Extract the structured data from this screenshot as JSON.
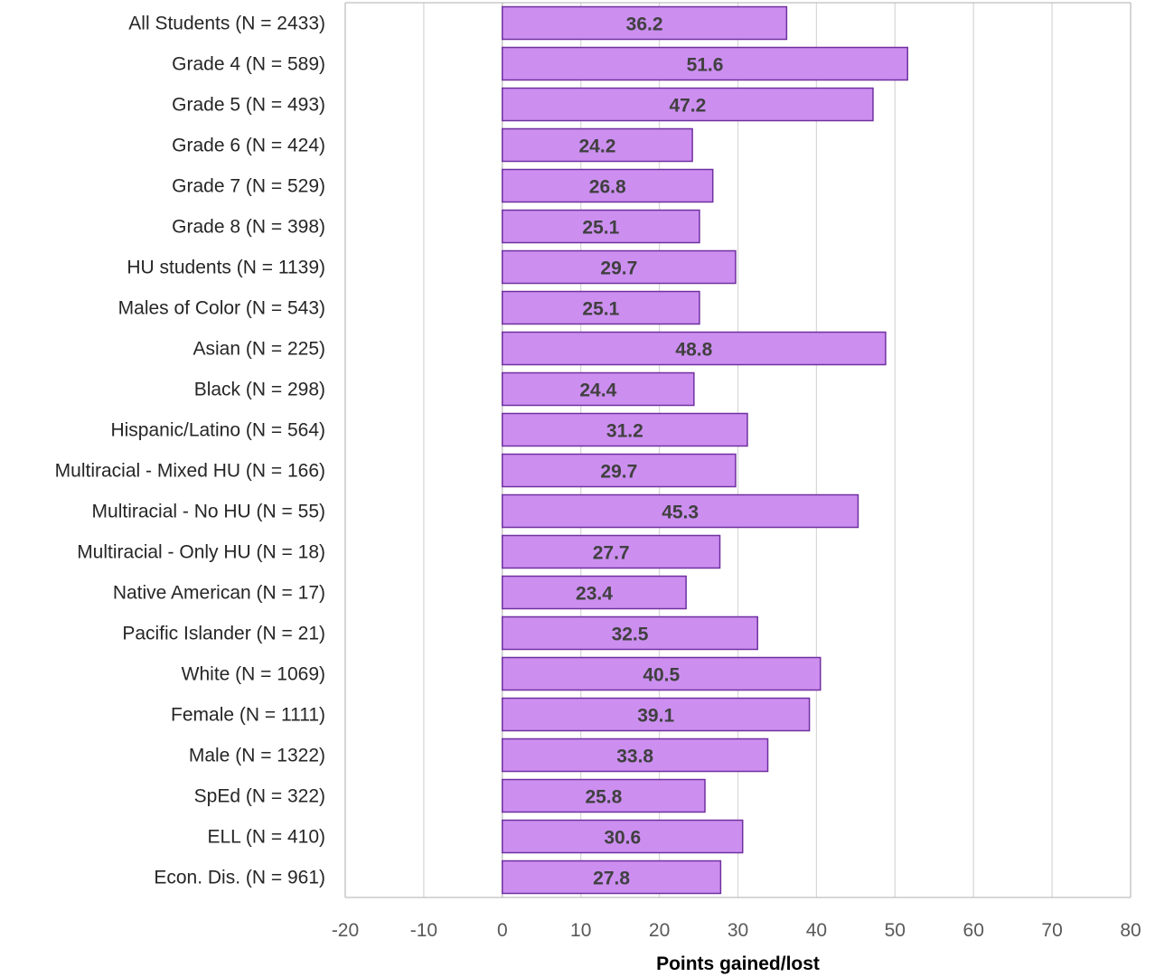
{
  "chart_data": {
    "type": "bar",
    "orientation": "horizontal",
    "categories": [
      "All Students (N = 2433)",
      "Grade 4 (N = 589)",
      "Grade 5 (N = 493)",
      "Grade 6 (N = 424)",
      "Grade 7 (N = 529)",
      "Grade 8 (N = 398)",
      "HU students (N = 1139)",
      "Males of Color (N = 543)",
      "Asian (N = 225)",
      "Black (N = 298)",
      "Hispanic/Latino (N = 564)",
      "Multiracial - Mixed HU (N = 166)",
      "Multiracial - No HU (N = 55)",
      "Multiracial - Only HU (N = 18)",
      "Native American (N = 17)",
      "Pacific Islander (N = 21)",
      "White (N = 1069)",
      "Female (N = 1111)",
      "Male (N = 1322)",
      "SpEd (N = 322)",
      "ELL (N = 410)",
      "Econ. Dis. (N = 961)"
    ],
    "values": [
      36.2,
      51.6,
      47.2,
      24.2,
      26.8,
      25.1,
      29.7,
      25.1,
      48.8,
      24.4,
      31.2,
      29.7,
      45.3,
      27.7,
      23.4,
      32.5,
      40.5,
      39.1,
      33.8,
      25.8,
      30.6,
      27.8
    ],
    "data_labels": [
      "36.2",
      "51.6",
      "47.2",
      "24.2",
      "26.8",
      "25.1",
      "29.7",
      "25.1",
      "48.8",
      "24.4",
      "31.2",
      "29.7",
      "45.3",
      "27.7",
      "23.4",
      "32.5",
      "40.5",
      "39.1",
      "33.8",
      "25.8",
      "30.6",
      "27.8"
    ],
    "xlabel": "Points gained/lost",
    "ylabel": "",
    "xlim": [
      -20,
      80
    ],
    "ticks": [
      -20,
      -10,
      0,
      10,
      20,
      30,
      40,
      50,
      60,
      70,
      80
    ],
    "tick_labels": [
      "-20",
      "-10",
      "0",
      "10",
      "20",
      "30",
      "40",
      "50",
      "60",
      "70",
      "80"
    ],
    "grid": true,
    "legend": "none",
    "colors": {
      "bar_fill": "#cc8ff0",
      "bar_stroke": "#7030a0",
      "grid": "#d9d9d9",
      "axis": "#bfbfbf"
    }
  }
}
